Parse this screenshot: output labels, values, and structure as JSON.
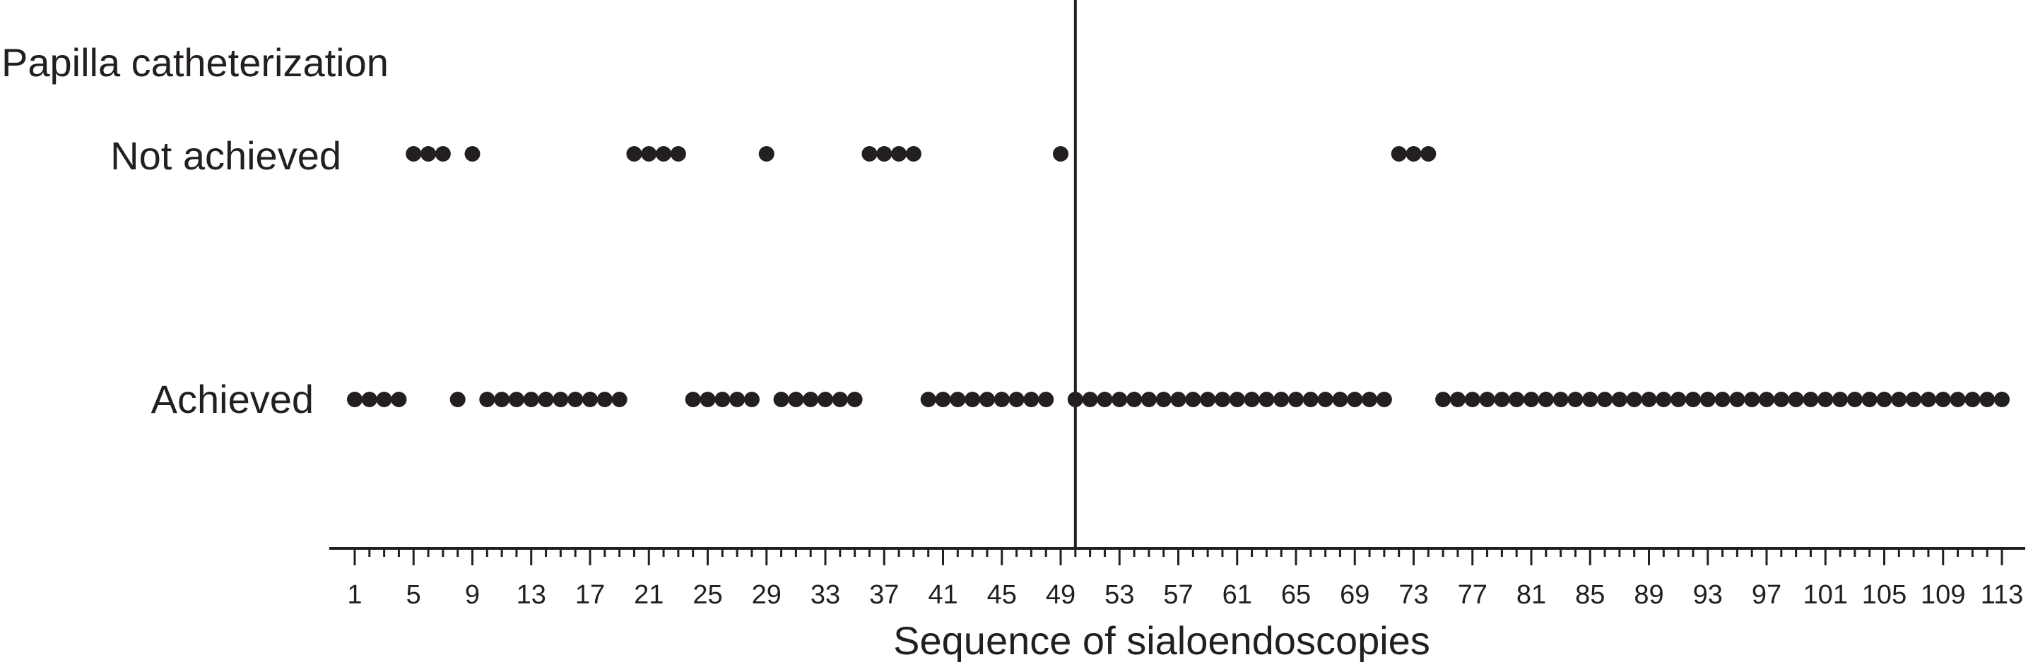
{
  "chart_data": {
    "type": "scatter",
    "title": "Papilla catheterization",
    "xlabel": "Sequence of sialoendoscopies",
    "ylabel": "",
    "xlim": [
      1,
      113
    ],
    "x_ticks": [
      1,
      5,
      9,
      13,
      17,
      21,
      25,
      29,
      33,
      37,
      41,
      45,
      49,
      53,
      57,
      61,
      65,
      69,
      73,
      77,
      81,
      85,
      89,
      93,
      97,
      101,
      105,
      109,
      113
    ],
    "categories": [
      "Not achieved",
      "Achieved"
    ],
    "series": [
      {
        "category": "Not achieved",
        "x": [
          5,
          6,
          7,
          9,
          20,
          21,
          22,
          23,
          29,
          36,
          37,
          38,
          39,
          49,
          72,
          73,
          74
        ]
      },
      {
        "category": "Achieved",
        "x": [
          1,
          2,
          3,
          4,
          8,
          10,
          11,
          12,
          13,
          14,
          15,
          16,
          17,
          18,
          19,
          24,
          25,
          26,
          27,
          28,
          30,
          31,
          32,
          33,
          34,
          35,
          40,
          41,
          42,
          43,
          44,
          45,
          46,
          47,
          48,
          50,
          51,
          52,
          53,
          54,
          55,
          56,
          57,
          58,
          59,
          60,
          61,
          62,
          63,
          64,
          65,
          66,
          67,
          68,
          69,
          70,
          71,
          75,
          76,
          77,
          78,
          79,
          80,
          81,
          82,
          83,
          84,
          85,
          86,
          87,
          88,
          89,
          90,
          91,
          92,
          93,
          94,
          95,
          96,
          97,
          98,
          99,
          100,
          101,
          102,
          103,
          104,
          105,
          106,
          107,
          108,
          109,
          110,
          111,
          112,
          113
        ]
      }
    ],
    "reference_line_x": 50,
    "grid": false,
    "legend": "none",
    "colors": {
      "marker": "#231f20",
      "axis": "#231f20",
      "background": "#ffffff"
    }
  }
}
